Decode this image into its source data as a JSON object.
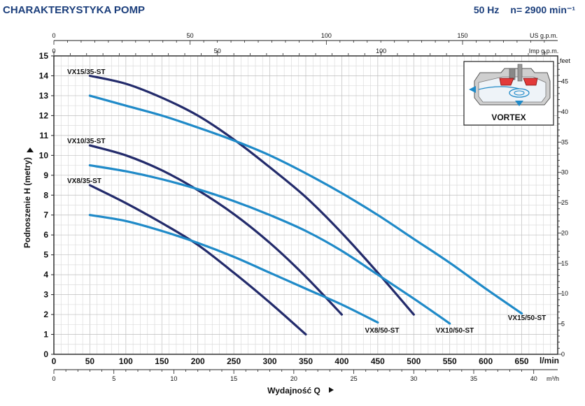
{
  "header": {
    "title": "CHARAKTERYSTYKA POMP",
    "frequency": "50 Hz",
    "speed": "n= 2900 min⁻¹"
  },
  "inset": {
    "label": "VORTEX",
    "icon": "vortex-pump-icon"
  },
  "colors": {
    "dark_curve": "#232b6b",
    "light_curve": "#1f8ac8",
    "grid": "#c8c8c8",
    "title": "#1c3f7c"
  },
  "chart_data": {
    "type": "line",
    "xlabel": "Wydajność Q",
    "ylabel": "Podnoszenie H  (metry)",
    "x_unit": "l/min",
    "xlim": [
      0,
      700
    ],
    "ylim": [
      0,
      15
    ],
    "x_ticks": [
      "0",
      "50",
      "100",
      "150",
      "200",
      "250",
      "300",
      "350",
      "400",
      "450",
      "500",
      "550",
      "600",
      "650"
    ],
    "y_ticks": [
      "0",
      "1",
      "2",
      "3",
      "4",
      "5",
      "6",
      "7",
      "8",
      "9",
      "10",
      "11",
      "12",
      "13",
      "14",
      "15"
    ],
    "m3h_axis": {
      "unit": "m³/h",
      "ticks": [
        "0",
        "5",
        "10",
        "15",
        "20",
        "25",
        "30",
        "35",
        "40"
      ]
    },
    "us_gpm_axis": {
      "unit": "US g.p.m.",
      "ticks": [
        "0",
        "50",
        "100",
        "150"
      ]
    },
    "imp_gpm_axis": {
      "unit": "Imp g.p.m.",
      "ticks": [
        "0",
        "50",
        "100"
      ]
    },
    "feet_axis": {
      "unit": "feet",
      "ticks": [
        "0",
        "5",
        "10",
        "15",
        "20",
        "25",
        "30",
        "35",
        "40",
        "45"
      ]
    },
    "grid": true,
    "series": [
      {
        "name": "VX15/35-ST",
        "color": "dark",
        "x": [
          50,
          100,
          150,
          200,
          250,
          300,
          350,
          400,
          450,
          500
        ],
        "y": [
          14,
          13.6,
          12.9,
          12,
          10.8,
          9.4,
          7.9,
          6.1,
          4.1,
          2.0
        ]
      },
      {
        "name": "VX15/50-ST",
        "color": "light",
        "x": [
          50,
          100,
          150,
          200,
          250,
          300,
          350,
          400,
          450,
          500,
          550,
          600,
          650
        ],
        "y": [
          13,
          12.5,
          12,
          11.4,
          10.75,
          10,
          9.1,
          8.1,
          7.0,
          5.8,
          4.6,
          3.3,
          2.05
        ]
      },
      {
        "name": "VX10/35-ST",
        "color": "dark",
        "x": [
          50,
          100,
          150,
          200,
          250,
          300,
          350,
          400
        ],
        "y": [
          10.5,
          10.0,
          9.25,
          8.25,
          7.05,
          5.6,
          3.9,
          2.0
        ]
      },
      {
        "name": "VX10/50-ST",
        "color": "light",
        "x": [
          50,
          100,
          150,
          200,
          250,
          300,
          350,
          400,
          450,
          500,
          550
        ],
        "y": [
          9.5,
          9.2,
          8.8,
          8.3,
          7.7,
          7.0,
          6.2,
          5.2,
          4.0,
          2.8,
          1.55
        ]
      },
      {
        "name": "VX8/35-ST",
        "color": "dark",
        "x": [
          50,
          100,
          150,
          200,
          250,
          300,
          350
        ],
        "y": [
          8.5,
          7.6,
          6.6,
          5.5,
          4.1,
          2.6,
          1.0
        ]
      },
      {
        "name": "VX8/50-ST",
        "color": "light",
        "x": [
          50,
          100,
          150,
          200,
          250,
          300,
          350,
          400,
          450
        ],
        "y": [
          7.0,
          6.7,
          6.2,
          5.6,
          4.9,
          4.1,
          3.3,
          2.5,
          1.6
        ]
      }
    ]
  }
}
